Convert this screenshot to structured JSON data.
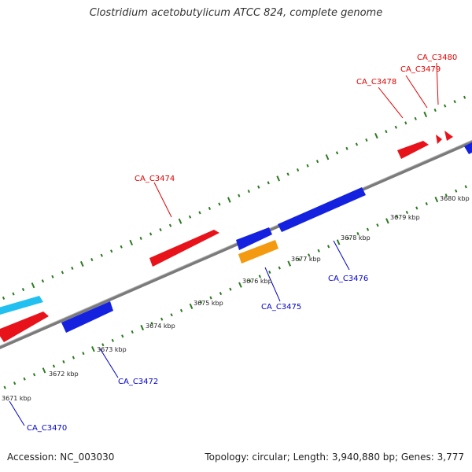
{
  "title": "Clostridium acetobutylicum ATCC 824, complete genome",
  "footer": {
    "accession": "Accession: NC_003030",
    "summary": "Topology: circular; Length: 3,940,880 bp; Genes: 3,777"
  },
  "colors": {
    "backbone": "#7a7a7a",
    "tick": "#2a7a1e",
    "forward_gene": "#e8131a",
    "reverse_gene": "#1422e0",
    "highlight_forward": "#22c0f0",
    "highlight_reverse": "#f49a10",
    "forward_label": "#e00000",
    "reverse_label": "#0000cc"
  },
  "scale_labels": [
    "3671 kbp",
    "3672 kbp",
    "3673 kbp",
    "3674 kbp",
    "3675 kbp",
    "3676 kbp",
    "3677 kbp",
    "3678 kbp",
    "3679 kbp",
    "3680 kbp"
  ],
  "gene_labels": {
    "forward": [
      "CA_C3474",
      "CA_C3478",
      "CA_C3479",
      "CA_C3480"
    ],
    "reverse": [
      "CA_C3470",
      "CA_C3472",
      "CA_C3475",
      "CA_C3476"
    ]
  }
}
